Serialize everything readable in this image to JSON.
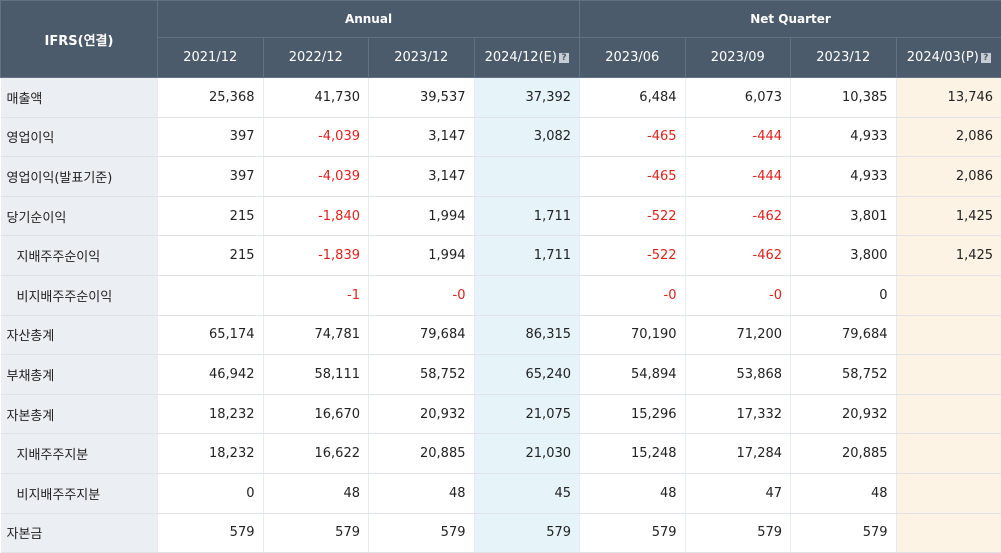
{
  "header": {
    "ifrs_label": "IFRS(연결)",
    "annual_label": "Annual",
    "quarter_label": "Net Quarter",
    "annual_periods": [
      "2021/12",
      "2022/12",
      "2023/12",
      "2024/12(E)"
    ],
    "quarter_periods": [
      "2023/06",
      "2023/09",
      "2023/12",
      "2024/03(P)"
    ],
    "info_icon": "?"
  },
  "rows": [
    {
      "label": "매출액",
      "sub": false,
      "values": [
        "25,368",
        "41,730",
        "39,537",
        "37,392",
        "6,484",
        "6,073",
        "10,385",
        "13,746"
      ]
    },
    {
      "label": "영업이익",
      "sub": false,
      "values": [
        "397",
        "-4,039",
        "3,147",
        "3,082",
        "-465",
        "-444",
        "4,933",
        "2,086"
      ]
    },
    {
      "label": "영업이익(발표기준)",
      "sub": false,
      "values": [
        "397",
        "-4,039",
        "3,147",
        "",
        "-465",
        "-444",
        "4,933",
        "2,086"
      ]
    },
    {
      "label": "당기순이익",
      "sub": false,
      "values": [
        "215",
        "-1,840",
        "1,994",
        "1,711",
        "-522",
        "-462",
        "3,801",
        "1,425"
      ]
    },
    {
      "label": "지배주주순이익",
      "sub": true,
      "values": [
        "215",
        "-1,839",
        "1,994",
        "1,711",
        "-522",
        "-462",
        "3,800",
        "1,425"
      ]
    },
    {
      "label": "비지배주주순이익",
      "sub": true,
      "values": [
        "",
        "-1",
        "-0",
        "",
        "-0",
        "-0",
        "0",
        ""
      ]
    },
    {
      "label": "자산총계",
      "sub": false,
      "values": [
        "65,174",
        "74,781",
        "79,684",
        "86,315",
        "70,190",
        "71,200",
        "79,684",
        ""
      ]
    },
    {
      "label": "부채총계",
      "sub": false,
      "values": [
        "46,942",
        "58,111",
        "58,752",
        "65,240",
        "54,894",
        "53,868",
        "58,752",
        ""
      ]
    },
    {
      "label": "자본총계",
      "sub": false,
      "values": [
        "18,232",
        "16,670",
        "20,932",
        "21,075",
        "15,296",
        "17,332",
        "20,932",
        ""
      ]
    },
    {
      "label": "지배주주지분",
      "sub": true,
      "values": [
        "18,232",
        "16,622",
        "20,885",
        "21,030",
        "15,248",
        "17,284",
        "20,885",
        ""
      ]
    },
    {
      "label": "비지배주주지분",
      "sub": true,
      "values": [
        "0",
        "48",
        "48",
        "45",
        "48",
        "47",
        "48",
        ""
      ]
    },
    {
      "label": "자본금",
      "sub": false,
      "values": [
        "579",
        "579",
        "579",
        "579",
        "579",
        "579",
        "579",
        ""
      ]
    }
  ],
  "colors": {
    "header_bg": "#4c5b6c",
    "label_bg": "#ebeff4",
    "estimate_bg": "#e6f4fa",
    "provisional_bg": "#fdf3e5",
    "negative": "#e0211b"
  }
}
